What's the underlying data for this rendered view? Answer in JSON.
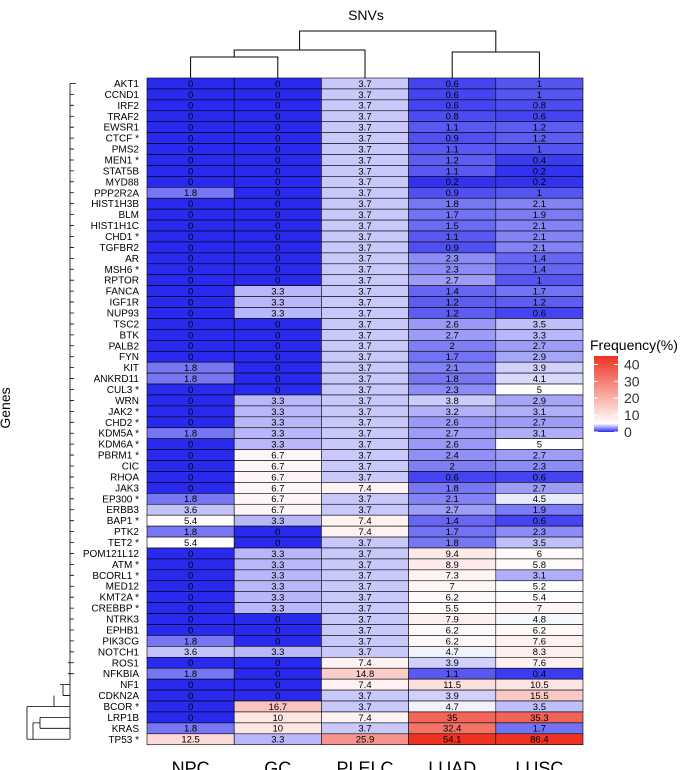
{
  "chart_data": {
    "type": "heatmap",
    "title": "SNVs",
    "ylabel": "Genes",
    "columns": [
      "NPC",
      "GC",
      "PLELC",
      "LUAD",
      "LUSC"
    ],
    "rows": [
      {
        "label": "AKT1",
        "values": [
          "0",
          "0",
          "3.7",
          "0.6",
          "1"
        ]
      },
      {
        "label": "CCND1",
        "values": [
          "0",
          "0",
          "3.7",
          "0.6",
          "1"
        ]
      },
      {
        "label": "IRF2",
        "values": [
          "0",
          "0",
          "3.7",
          "0.6",
          "0.8"
        ]
      },
      {
        "label": "TRAF2",
        "values": [
          "0",
          "0",
          "3.7",
          "0.8",
          "0.6"
        ]
      },
      {
        "label": "EWSR1",
        "values": [
          "0",
          "0",
          "3.7",
          "1.1",
          "1.2"
        ]
      },
      {
        "label": "CTCF *",
        "values": [
          "0",
          "0",
          "3.7",
          "0.9",
          "1.2"
        ]
      },
      {
        "label": "PMS2",
        "values": [
          "0",
          "0",
          "3.7",
          "1.1",
          "1"
        ]
      },
      {
        "label": "MEN1 *",
        "values": [
          "0",
          "0",
          "3.7",
          "1.2",
          "0.4"
        ]
      },
      {
        "label": "STAT5B",
        "values": [
          "0",
          "0",
          "3.7",
          "1.1",
          "0.2"
        ]
      },
      {
        "label": "MYD88",
        "values": [
          "0",
          "0",
          "3.7",
          "0.2",
          "0.2"
        ]
      },
      {
        "label": "PPP2R2A",
        "values": [
          "1.8",
          "0",
          "3.7",
          "0.9",
          "1"
        ]
      },
      {
        "label": "HIST1H3B",
        "values": [
          "0",
          "0",
          "3.7",
          "1.8",
          "2.1"
        ]
      },
      {
        "label": "BLM",
        "values": [
          "0",
          "0",
          "3.7",
          "1.7",
          "1.9"
        ]
      },
      {
        "label": "HIST1H1C",
        "values": [
          "0",
          "0",
          "3.7",
          "1.5",
          "2.1"
        ]
      },
      {
        "label": "CHD1 *",
        "values": [
          "0",
          "0",
          "3.7",
          "1.1",
          "2.1"
        ]
      },
      {
        "label": "TGFBR2",
        "values": [
          "0",
          "0",
          "3.7",
          "0.9",
          "2.1"
        ]
      },
      {
        "label": "AR",
        "values": [
          "0",
          "0",
          "3.7",
          "2.3",
          "1.4"
        ]
      },
      {
        "label": "MSH6 *",
        "values": [
          "0",
          "0",
          "3.7",
          "2.3",
          "1.4"
        ]
      },
      {
        "label": "RPTOR",
        "values": [
          "0",
          "0",
          "3.7",
          "2.7",
          "1"
        ]
      },
      {
        "label": "FANCA",
        "values": [
          "0",
          "3.3",
          "3.7",
          "1.4",
          "1.7"
        ]
      },
      {
        "label": "IGF1R",
        "values": [
          "0",
          "3.3",
          "3.7",
          "1.2",
          "1.2"
        ]
      },
      {
        "label": "NUP93",
        "values": [
          "0",
          "3.3",
          "3.7",
          "1.2",
          "0.6"
        ]
      },
      {
        "label": "TSC2",
        "values": [
          "0",
          "0",
          "3.7",
          "2.6",
          "3.5"
        ]
      },
      {
        "label": "BTK",
        "values": [
          "0",
          "0",
          "3.7",
          "2.7",
          "3.3"
        ]
      },
      {
        "label": "PALB2",
        "values": [
          "0",
          "0",
          "3.7",
          "2",
          "2.7"
        ]
      },
      {
        "label": "FYN",
        "values": [
          "0",
          "0",
          "3.7",
          "1.7",
          "2.9"
        ]
      },
      {
        "label": "KIT",
        "values": [
          "1.8",
          "0",
          "3.7",
          "2.1",
          "3.9"
        ]
      },
      {
        "label": "ANKRD11",
        "values": [
          "1.8",
          "0",
          "3.7",
          "1.8",
          "4.1"
        ]
      },
      {
        "label": "CUL3 *",
        "values": [
          "0",
          "0",
          "3.7",
          "2.3",
          "5"
        ]
      },
      {
        "label": "WRN",
        "values": [
          "0",
          "3.3",
          "3.7",
          "3.8",
          "2.9"
        ]
      },
      {
        "label": "JAK2 *",
        "values": [
          "0",
          "3.3",
          "3.7",
          "3.2",
          "3.1"
        ]
      },
      {
        "label": "CHD2 *",
        "values": [
          "0",
          "3.3",
          "3.7",
          "2.6",
          "2.7"
        ]
      },
      {
        "label": "KDM5A *",
        "values": [
          "1.8",
          "3.3",
          "3.7",
          "2.7",
          "3.1"
        ]
      },
      {
        "label": "KDM6A *",
        "values": [
          "0",
          "3.3",
          "3.7",
          "2.6",
          "5"
        ]
      },
      {
        "label": "PBRM1 *",
        "values": [
          "0",
          "6.7",
          "3.7",
          "2.4",
          "2.7"
        ]
      },
      {
        "label": "CIC",
        "values": [
          "0",
          "6.7",
          "3.7",
          "2",
          "2.3"
        ]
      },
      {
        "label": "RHOA",
        "values": [
          "0",
          "6.7",
          "3.7",
          "0.6",
          "0.6"
        ]
      },
      {
        "label": "JAK3",
        "values": [
          "0",
          "6.7",
          "7.4",
          "1.8",
          "2.7"
        ]
      },
      {
        "label": "EP300 *",
        "values": [
          "1.8",
          "6.7",
          "3.7",
          "2.1",
          "4.5"
        ]
      },
      {
        "label": "ERBB3",
        "values": [
          "3.6",
          "6.7",
          "3.7",
          "2.7",
          "1.9"
        ]
      },
      {
        "label": "BAP1 *",
        "values": [
          "5.4",
          "3.3",
          "7.4",
          "1.4",
          "0.6"
        ]
      },
      {
        "label": "PTK2",
        "values": [
          "1.8",
          "0",
          "7.4",
          "1.7",
          "2.3"
        ]
      },
      {
        "label": "TET2 *",
        "values": [
          "5.4",
          "0",
          "3.7",
          "1.8",
          "3.5"
        ]
      },
      {
        "label": "POM121L12",
        "values": [
          "0",
          "3.3",
          "3.7",
          "9.4",
          "6"
        ]
      },
      {
        "label": "ATM *",
        "values": [
          "0",
          "3.3",
          "3.7",
          "8.9",
          "5.8"
        ]
      },
      {
        "label": "BCORL1 *",
        "values": [
          "0",
          "3.3",
          "3.7",
          "7.3",
          "3.1"
        ]
      },
      {
        "label": "MED12",
        "values": [
          "0",
          "3.3",
          "3.7",
          "7",
          "5.2"
        ]
      },
      {
        "label": "KMT2A *",
        "values": [
          "0",
          "3.3",
          "3.7",
          "6.2",
          "5.4"
        ]
      },
      {
        "label": "CREBBP *",
        "values": [
          "0",
          "3.3",
          "3.7",
          "5.5",
          "7"
        ]
      },
      {
        "label": "NTRK3",
        "values": [
          "0",
          "0",
          "3.7",
          "7.9",
          "4.8"
        ]
      },
      {
        "label": "EPHB1",
        "values": [
          "0",
          "0",
          "3.7",
          "6.2",
          "6.2"
        ]
      },
      {
        "label": "PIK3CG",
        "values": [
          "1.8",
          "0",
          "3.7",
          "6.2",
          "7.6"
        ]
      },
      {
        "label": "NOTCH1",
        "values": [
          "3.6",
          "3.3",
          "3.7",
          "4.7",
          "8.3"
        ]
      },
      {
        "label": "ROS1",
        "values": [
          "0",
          "0",
          "7.4",
          "3.9",
          "7.6"
        ]
      },
      {
        "label": "NFKBIA",
        "values": [
          "1.8",
          "0",
          "14.8",
          "1.1",
          "0.4"
        ]
      },
      {
        "label": "NF1",
        "values": [
          "0",
          "0",
          "7.4",
          "11.5",
          "10.5"
        ]
      },
      {
        "label": "CDKN2A",
        "values": [
          "0",
          "0",
          "3.7",
          "3.9",
          "15.5"
        ]
      },
      {
        "label": "BCOR *",
        "values": [
          "0",
          "16.7",
          "3.7",
          "4.7",
          "3.5"
        ]
      },
      {
        "label": "LRP1B",
        "values": [
          "0",
          "10",
          "7.4",
          "35",
          "35.3"
        ]
      },
      {
        "label": "KRAS",
        "values": [
          "1.8",
          "10",
          "3.7",
          "32.4",
          "1.7"
        ]
      },
      {
        "label": "TP53 *",
        "values": [
          "12.5",
          "3.3",
          "25.9",
          "54.1",
          "86.4"
        ]
      }
    ],
    "color_scale": {
      "low": "#2a2aee",
      "mid": "#ffffff",
      "high": "#ee3322",
      "low_value": 0,
      "mid_value": 5,
      "high_value": 45
    },
    "legend": {
      "title": "Frequency(%)",
      "ticks": [
        "0",
        "10",
        "20",
        "30",
        "40"
      ],
      "position": "right"
    }
  }
}
